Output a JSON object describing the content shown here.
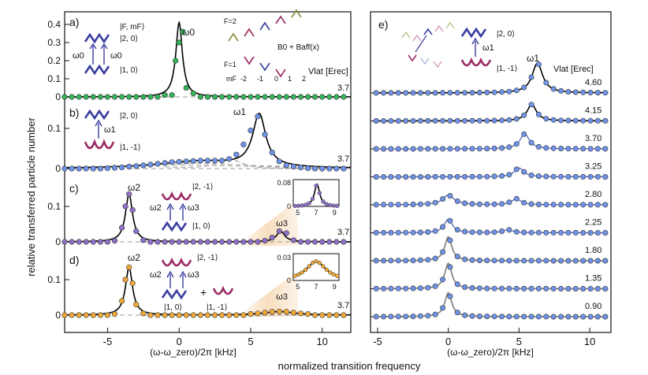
{
  "y_axis_label": "relative transferred particle number",
  "bottom_label": "normalized transition frequency",
  "left_xlabel": "(ω-ω_zero)/2π [kHz]",
  "right_xlabel": "(ω-ω_zero)/2π [kHz]",
  "colors": {
    "green": "#35b35a",
    "blue": "#6f93e8",
    "purple": "#8f70c8",
    "orange": "#f0a938",
    "wine": "#9b2a63",
    "indigo": "#3b3fa0",
    "olive": "#8a8a3a"
  },
  "chart_data": [
    {
      "panel": "a",
      "type": "scatter",
      "color": "#35b35a",
      "vlat_text": "3.7",
      "yticks": [
        "0",
        "0.1",
        "0.2",
        "0.3",
        "0.4"
      ],
      "ylim": [
        0,
        0.45
      ],
      "xlim": [
        -8,
        12
      ],
      "peak_label": "ω0",
      "labels": {
        "state_header": "|F, mF⟩",
        "upper": "|2, 0⟩",
        "lower": "|1, 0⟩",
        "omega_left": "ω0",
        "omega_right": "ω0",
        "f2": "F=2",
        "f1": "F=1",
        "mf": "mF",
        "mf_values": [
          "-2",
          "-1",
          "0",
          "1",
          "2"
        ],
        "field": "B0 + Baff(x)",
        "vlat_header": "Vlat [Erec]"
      },
      "peaks": [
        {
          "center": 0.0,
          "amp": 0.41,
          "width": 0.28
        }
      ],
      "x": [
        -8,
        -7.5,
        -7,
        -6.5,
        -6,
        -5.5,
        -5,
        -4.5,
        -4,
        -3.5,
        -3,
        -2.5,
        -2,
        -1.5,
        -1,
        -0.5,
        -0.25,
        0,
        0.25,
        0.5,
        1,
        1.5,
        2,
        2.5,
        3,
        3.5,
        4,
        4.5,
        5,
        5.5,
        6,
        6.5,
        7,
        7.5,
        8,
        8.5,
        9,
        9.5,
        10,
        10.5,
        11,
        11.5
      ],
      "y": [
        0,
        0,
        0,
        0,
        0,
        0,
        0,
        0,
        0,
        0,
        0,
        0,
        0,
        0,
        0.01,
        0.01,
        0.2,
        0.3,
        0.36,
        0.05,
        0.02,
        0,
        0,
        0,
        0,
        0,
        0,
        0,
        0,
        0,
        0,
        0,
        0,
        0,
        0,
        0,
        0,
        0,
        0,
        0,
        0,
        0
      ]
    },
    {
      "panel": "b",
      "type": "scatter",
      "color": "#6f93e8",
      "vlat_text": "3.7",
      "yticks": [
        "0",
        "0.1"
      ],
      "ylim": [
        0,
        0.18
      ],
      "xlim": [
        -8,
        12
      ],
      "peak_label": "ω1",
      "labels": {
        "upper": "|2, 0⟩",
        "lower": "|1, -1⟩",
        "omega": "ω1"
      },
      "peaks": [
        {
          "center": 5.6,
          "amp": 0.13,
          "width": 0.55
        },
        {
          "center": 1.5,
          "amp": 0.018,
          "width": 3.5
        }
      ],
      "x": [
        -8,
        -7.5,
        -7,
        -6.5,
        -6,
        -5.5,
        -5,
        -4.5,
        -4,
        -3.5,
        -3,
        -2.5,
        -2,
        -1.5,
        -1,
        -0.5,
        0,
        0.5,
        1,
        1.5,
        2,
        2.5,
        3,
        3.5,
        4,
        4.5,
        5,
        5.5,
        6,
        6.5,
        7,
        7.5,
        8,
        8.5,
        9,
        9.5,
        10,
        10.5,
        11,
        11.5
      ],
      "y": [
        0,
        0,
        0,
        0,
        0,
        0,
        0.001,
        0.002,
        0.003,
        0.005,
        0.006,
        0.008,
        0.01,
        0.012,
        0.014,
        0.016,
        0.017,
        0.018,
        0.019,
        0.02,
        0.02,
        0.02,
        0.02,
        0.024,
        0.035,
        0.06,
        0.095,
        0.13,
        0.085,
        0.04,
        0.018,
        0.008,
        0.005,
        0.003,
        0.001,
        0,
        0,
        0,
        0,
        0
      ]
    },
    {
      "panel": "c",
      "type": "scatter",
      "color": "#8f70c8",
      "vlat_text": "3.7",
      "yticks": [
        "0",
        "0.1"
      ],
      "ylim": [
        0,
        0.17
      ],
      "xlim": [
        -8,
        12
      ],
      "peak_label": "ω2",
      "peak2_label": "ω3",
      "labels": {
        "upper": "|2, -1⟩",
        "lower": "|1, 0⟩",
        "omega_left": "ω2",
        "omega_right": "ω3"
      },
      "peaks": [
        {
          "center": -3.5,
          "amp": 0.135,
          "width": 0.3
        },
        {
          "center": 7.1,
          "amp": 0.03,
          "width": 0.35
        }
      ],
      "inset": {
        "xticks": [
          "5",
          "7",
          "9"
        ],
        "yticks": [
          "0",
          "0.08"
        ],
        "xlim": [
          4.5,
          9.5
        ],
        "ylim": [
          0,
          0.09
        ],
        "center": 7.1,
        "amp": 0.075,
        "width": 0.35
      },
      "x": [
        -8,
        -7.5,
        -7,
        -6.5,
        -6,
        -5.5,
        -5,
        -4.5,
        -4,
        -3.75,
        -3.5,
        -3.25,
        -3,
        -2.5,
        -2,
        -1.5,
        -1,
        -0.5,
        0,
        0.5,
        1,
        1.5,
        2,
        2.5,
        3,
        3.5,
        4,
        4.5,
        5,
        5.5,
        6,
        6.5,
        7,
        7.5,
        8,
        8.5,
        9,
        9.5,
        10,
        10.5,
        11,
        11.5
      ],
      "y": [
        0,
        0,
        0,
        0,
        0,
        0,
        0,
        0.003,
        0.04,
        0.1,
        0.135,
        0.09,
        0.03,
        0.005,
        0,
        0,
        0,
        0,
        0,
        0,
        0,
        0,
        0,
        0,
        0,
        0,
        0,
        0,
        0,
        0,
        0.003,
        0.012,
        0.03,
        0.025,
        0.005,
        0,
        0,
        0,
        0,
        0,
        0,
        0
      ]
    },
    {
      "panel": "d",
      "type": "scatter",
      "color": "#f0a938",
      "vlat_text": "3.7",
      "yticks": [
        "0",
        "0.1"
      ],
      "ylim": [
        0,
        0.17
      ],
      "xlim": [
        -8,
        12
      ],
      "peak_label": "ω2",
      "peak2_label": "ω3",
      "labels": {
        "upper": "|2, -1⟩",
        "lower_left": "|1, 0⟩",
        "lower_right": "|1, -1⟩",
        "omega_left": "ω2",
        "omega_right": "ω3",
        "plus": "+"
      },
      "peaks": [
        {
          "center": -3.5,
          "amp": 0.135,
          "width": 0.3
        },
        {
          "center": 7.0,
          "amp": 0.01,
          "width": 1.3
        }
      ],
      "inset": {
        "xticks": [
          "5",
          "7",
          "9"
        ],
        "yticks": [
          "0",
          "0.03"
        ],
        "xlim": [
          4.5,
          9.5
        ],
        "ylim": [
          0,
          0.035
        ],
        "center": 7.0,
        "amp": 0.025,
        "width": 1.3
      },
      "x": [
        -8,
        -7.5,
        -7,
        -6.5,
        -6,
        -5.5,
        -5,
        -4.5,
        -4,
        -3.75,
        -3.5,
        -3.25,
        -3,
        -2.5,
        -2,
        -1.5,
        -1,
        -0.5,
        0,
        0.5,
        1,
        1.5,
        2,
        2.5,
        3,
        3.5,
        4,
        4.5,
        5,
        5.5,
        6,
        6.5,
        7,
        7.5,
        8,
        8.5,
        9,
        9.5,
        10,
        10.5,
        11,
        11.5
      ],
      "y": [
        0,
        0,
        0,
        0,
        0,
        0,
        0,
        0.003,
        0.04,
        0.1,
        0.135,
        0.09,
        0.03,
        0.005,
        0,
        0,
        0,
        0,
        0,
        0,
        0,
        0,
        0,
        0,
        0,
        0,
        0,
        0,
        0.003,
        0.005,
        0.007,
        0.009,
        0.01,
        0.009,
        0.007,
        0.005,
        0.003,
        0,
        0,
        0,
        0,
        0
      ]
    },
    {
      "panel": "e",
      "type": "line",
      "color": "#6f93e8",
      "xlim": [
        -5.5,
        11.5
      ],
      "xticks": [
        "-5",
        "0",
        "5",
        "10"
      ],
      "peak_label": "ω1",
      "vlat_header": "Vlat [Erec]",
      "labels": {
        "upper": "|2, 0⟩",
        "lower": "|1, -1⟩",
        "omega": "ω1"
      },
      "series": [
        {
          "name": "4.60",
          "peaks": [
            {
              "center": 6.3,
              "amp": 1.0,
              "width": 0.45
            }
          ]
        },
        {
          "name": "4.15",
          "peaks": [
            {
              "center": 5.9,
              "amp": 0.55,
              "width": 0.4
            }
          ]
        },
        {
          "name": "3.70",
          "peaks": [
            {
              "center": 5.4,
              "amp": 0.5,
              "width": 0.4
            }
          ]
        },
        {
          "name": "3.25",
          "peaks": [
            {
              "center": 5.0,
              "amp": 0.3,
              "width": 0.4
            }
          ]
        },
        {
          "name": "2.80",
          "peaks": [
            {
              "center": 0.0,
              "amp": 0.32,
              "width": 0.5
            },
            {
              "center": 4.8,
              "amp": 0.2,
              "width": 0.4
            }
          ]
        },
        {
          "name": "2.25",
          "peaks": [
            {
              "center": 0.0,
              "amp": 0.45,
              "width": 0.35
            },
            {
              "center": 4.2,
              "amp": 0.1,
              "width": 0.4
            }
          ]
        },
        {
          "name": "1.80",
          "peaks": [
            {
              "center": 0.0,
              "amp": 0.8,
              "width": 0.3
            }
          ]
        },
        {
          "name": "1.35",
          "peaks": [
            {
              "center": 0.0,
              "amp": 0.85,
              "width": 0.3
            }
          ]
        },
        {
          "name": "0.90",
          "peaks": [
            {
              "center": 0.0,
              "amp": 0.8,
              "width": 0.3
            }
          ]
        }
      ]
    }
  ]
}
